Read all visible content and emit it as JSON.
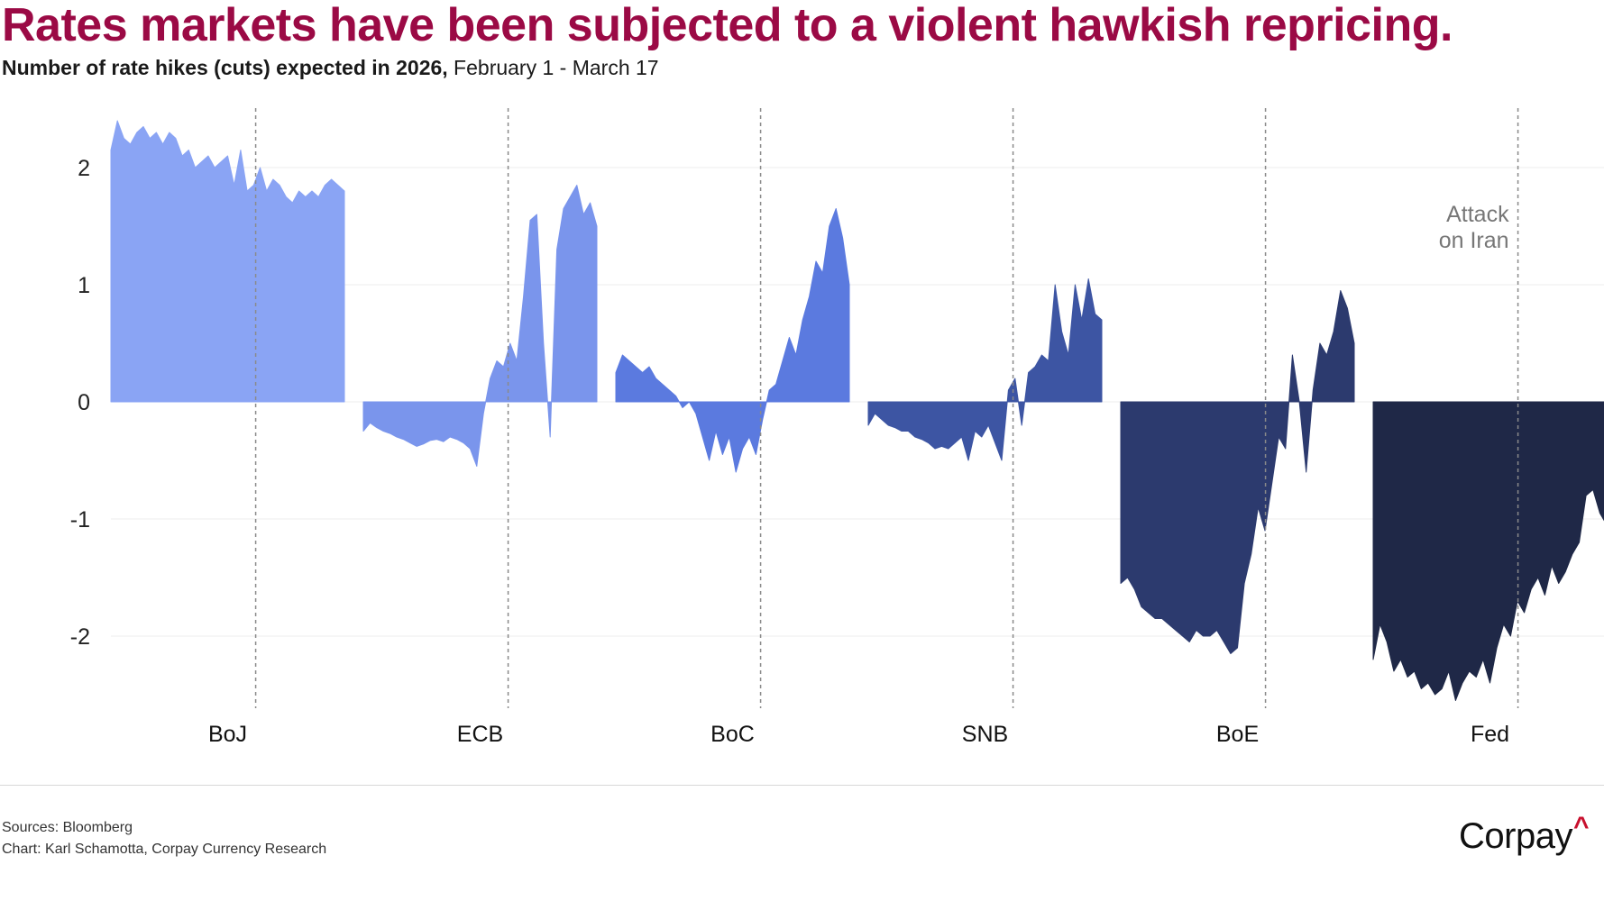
{
  "header": {
    "title": "Rates markets have been subjected to a violent hawkish repricing.",
    "subtitle_bold": "Number of rate hikes (cuts) expected in 2026,",
    "subtitle_regular": " February 1 - March 17"
  },
  "chart_data": {
    "type": "area",
    "title": "Rates markets have been subjected to a violent hawkish repricing.",
    "subtitle": "Number of rate hikes (cuts) expected in 2026, February 1 - March 17",
    "ylim": [
      -2.6,
      2.5
    ],
    "yticks": [
      2,
      1,
      0,
      -1,
      -2
    ],
    "ytick_labels": [
      "2",
      "1",
      "0",
      "-1",
      "-2"
    ],
    "grid": true,
    "x_period": "February 1 - March 17",
    "event": {
      "label_line1": "Attack",
      "label_line2": "on Iran",
      "at_fraction": 0.62
    },
    "series": [
      {
        "name": "BoJ",
        "color": "#8aa4f4",
        "values": [
          2.15,
          2.4,
          2.25,
          2.2,
          2.3,
          2.35,
          2.25,
          2.3,
          2.2,
          2.3,
          2.25,
          2.1,
          2.15,
          2.0,
          2.05,
          2.1,
          2.0,
          2.05,
          2.1,
          1.85,
          2.15,
          1.8,
          1.85,
          2.0,
          1.8,
          1.9,
          1.85,
          1.75,
          1.7,
          1.8,
          1.75,
          1.8,
          1.75,
          1.85,
          1.9,
          1.85,
          1.8
        ]
      },
      {
        "name": "ECB",
        "color": "#7a95ec",
        "values": [
          -0.25,
          -0.18,
          -0.22,
          -0.25,
          -0.27,
          -0.3,
          -0.32,
          -0.35,
          -0.38,
          -0.36,
          -0.33,
          -0.32,
          -0.34,
          -0.3,
          -0.32,
          -0.35,
          -0.4,
          -0.55,
          -0.1,
          0.2,
          0.35,
          0.3,
          0.5,
          0.35,
          0.9,
          1.55,
          1.6,
          0.5,
          -0.3,
          1.3,
          1.65,
          1.75,
          1.85,
          1.6,
          1.7,
          1.5
        ]
      },
      {
        "name": "BoC",
        "color": "#5b7adf",
        "values": [
          0.25,
          0.4,
          0.35,
          0.3,
          0.25,
          0.3,
          0.2,
          0.15,
          0.1,
          0.05,
          -0.05,
          0.0,
          -0.1,
          -0.3,
          -0.5,
          -0.25,
          -0.45,
          -0.3,
          -0.6,
          -0.4,
          -0.3,
          -0.45,
          -0.15,
          0.1,
          0.15,
          0.35,
          0.55,
          0.4,
          0.7,
          0.9,
          1.2,
          1.1,
          1.5,
          1.65,
          1.4,
          1.0
        ]
      },
      {
        "name": "SNB",
        "color": "#3d55a3",
        "values": [
          -0.2,
          -0.1,
          -0.15,
          -0.2,
          -0.22,
          -0.25,
          -0.25,
          -0.3,
          -0.32,
          -0.35,
          -0.4,
          -0.38,
          -0.4,
          -0.35,
          -0.3,
          -0.5,
          -0.25,
          -0.3,
          -0.2,
          -0.35,
          -0.5,
          0.1,
          0.2,
          -0.2,
          0.25,
          0.3,
          0.4,
          0.35,
          1.0,
          0.6,
          0.4,
          1.0,
          0.7,
          1.05,
          0.75,
          0.7
        ]
      },
      {
        "name": "BoE",
        "color": "#2c3a6e",
        "values": [
          -1.55,
          -1.5,
          -1.6,
          -1.75,
          -1.8,
          -1.85,
          -1.85,
          -1.9,
          -1.95,
          -2.0,
          -2.05,
          -1.95,
          -2.0,
          -2.0,
          -1.95,
          -2.05,
          -2.15,
          -2.1,
          -1.55,
          -1.3,
          -0.9,
          -1.1,
          -0.7,
          -0.3,
          -0.4,
          0.4,
          0.0,
          -0.6,
          0.1,
          0.5,
          0.4,
          0.6,
          0.95,
          0.8,
          0.5
        ]
      },
      {
        "name": "Fed",
        "color": "#1f2847",
        "values": [
          -2.2,
          -1.9,
          -2.05,
          -2.3,
          -2.2,
          -2.35,
          -2.3,
          -2.45,
          -2.4,
          -2.5,
          -2.45,
          -2.3,
          -2.55,
          -2.4,
          -2.3,
          -2.35,
          -2.2,
          -2.4,
          -2.1,
          -1.9,
          -2.0,
          -1.7,
          -1.8,
          -1.6,
          -1.5,
          -1.65,
          -1.4,
          -1.55,
          -1.45,
          -1.3,
          -1.2,
          -0.8,
          -0.75,
          -0.95,
          -1.05
        ]
      }
    ]
  },
  "footer": {
    "sources": "Sources: Bloomberg",
    "credit": "Chart: Karl Schamotta, Corpay Currency Research"
  },
  "logo": {
    "text": "Corpay",
    "mark": "^"
  }
}
